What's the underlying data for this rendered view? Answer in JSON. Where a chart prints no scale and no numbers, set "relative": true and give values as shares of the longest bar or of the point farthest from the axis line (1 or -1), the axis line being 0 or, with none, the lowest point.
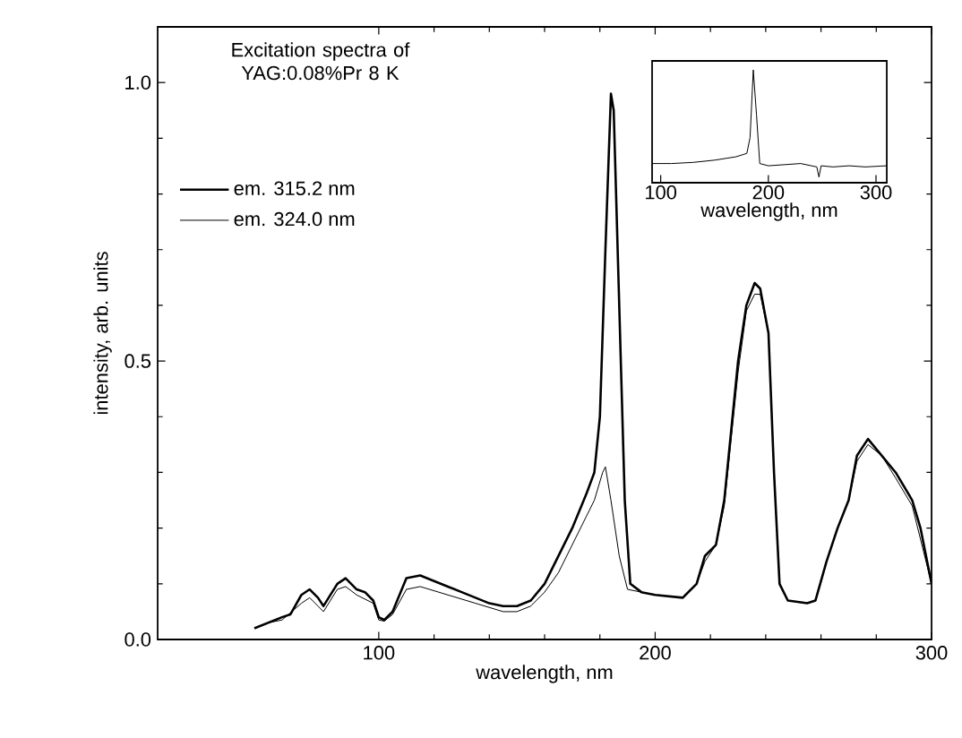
{
  "chart_data": [
    {
      "type": "line",
      "title": "Excitation spectra of YAG:0.08%Pr 8 K",
      "xlabel": "wavelength, nm",
      "ylabel": "intensity, arb. units",
      "xlim": [
        20,
        300
      ],
      "ylim": [
        0,
        1.1
      ],
      "xticks": [
        100,
        200,
        300
      ],
      "yticks": [
        {
          "value": 0,
          "label": "0.0"
        },
        {
          "value": 0.5,
          "label": "0.5"
        },
        {
          "value": 1,
          "label": "1.0"
        }
      ],
      "legend": "top left",
      "series": [
        {
          "name": "em. 315.2 nm",
          "color": "#000000",
          "x": [
            55,
            60,
            65,
            68,
            72,
            75,
            78,
            80,
            85,
            88,
            92,
            95,
            98,
            100,
            102,
            105,
            110,
            115,
            120,
            125,
            130,
            135,
            140,
            145,
            150,
            155,
            160,
            165,
            170,
            175,
            178,
            180,
            182,
            184,
            185,
            187,
            189,
            191,
            195,
            200,
            210,
            215,
            218,
            222,
            225,
            230,
            233,
            236,
            238,
            241,
            243,
            245,
            248,
            255,
            258,
            262,
            266,
            270,
            273,
            277,
            282,
            287,
            293,
            296,
            298,
            300
          ],
          "values": [
            0.02,
            0.03,
            0.04,
            0.045,
            0.08,
            0.09,
            0.075,
            0.06,
            0.1,
            0.11,
            0.09,
            0.085,
            0.07,
            0.04,
            0.035,
            0.05,
            0.11,
            0.115,
            0.105,
            0.095,
            0.085,
            0.075,
            0.065,
            0.06,
            0.06,
            0.07,
            0.1,
            0.15,
            0.2,
            0.26,
            0.3,
            0.4,
            0.7,
            0.98,
            0.95,
            0.6,
            0.25,
            0.1,
            0.085,
            0.08,
            0.075,
            0.1,
            0.15,
            0.17,
            0.25,
            0.5,
            0.6,
            0.64,
            0.63,
            0.55,
            0.3,
            0.1,
            0.07,
            0.065,
            0.07,
            0.14,
            0.2,
            0.25,
            0.33,
            0.36,
            0.33,
            0.3,
            0.25,
            0.2,
            0.15,
            0.1
          ]
        },
        {
          "name": "em. 324.0 nm",
          "color": "#000000",
          "x": [
            55,
            60,
            65,
            72,
            75,
            78,
            80,
            85,
            88,
            92,
            98,
            100,
            102,
            105,
            110,
            115,
            125,
            135,
            145,
            150,
            155,
            160,
            165,
            170,
            175,
            178,
            181,
            182,
            184,
            187,
            190,
            195,
            200,
            210,
            215,
            218,
            222,
            225,
            230,
            233,
            236,
            238,
            241,
            243,
            245,
            248,
            255,
            258,
            262,
            266,
            270,
            273,
            277,
            282,
            287,
            293,
            296,
            298,
            300
          ],
          "values": [
            0.02,
            0.03,
            0.035,
            0.065,
            0.075,
            0.06,
            0.05,
            0.09,
            0.095,
            0.08,
            0.065,
            0.035,
            0.033,
            0.045,
            0.09,
            0.095,
            0.08,
            0.065,
            0.05,
            0.05,
            0.06,
            0.085,
            0.12,
            0.17,
            0.22,
            0.25,
            0.3,
            0.31,
            0.25,
            0.15,
            0.09,
            0.085,
            0.08,
            0.075,
            0.1,
            0.14,
            0.17,
            0.24,
            0.48,
            0.59,
            0.62,
            0.62,
            0.55,
            0.3,
            0.1,
            0.07,
            0.065,
            0.07,
            0.14,
            0.2,
            0.25,
            0.32,
            0.35,
            0.33,
            0.29,
            0.24,
            0.18,
            0.14,
            0.1
          ]
        }
      ]
    },
    {
      "type": "line",
      "relative": true,
      "xlabel": "wavelength, nm",
      "xlim": [
        92,
        310
      ],
      "xticks": [
        100,
        200,
        300
      ],
      "series": [
        {
          "color": "#000000",
          "x": [
            92,
            110,
            130,
            150,
            170,
            180,
            183,
            186,
            189,
            192,
            200,
            215,
            230,
            240,
            245,
            247,
            249,
            260,
            275,
            290,
            310
          ],
          "values": [
            0.17,
            0.17,
            0.18,
            0.2,
            0.23,
            0.26,
            0.4,
            1.0,
            0.6,
            0.17,
            0.15,
            0.16,
            0.17,
            0.15,
            0.14,
            0.05,
            0.15,
            0.14,
            0.15,
            0.14,
            0.15
          ]
        }
      ]
    }
  ]
}
